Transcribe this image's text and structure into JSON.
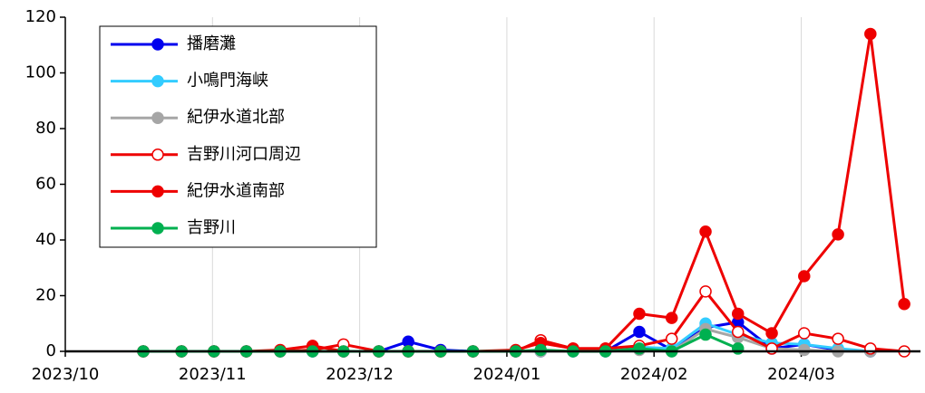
{
  "chart_data": {
    "type": "line",
    "x": [
      0.53,
      0.79,
      1.01,
      1.23,
      1.46,
      1.68,
      1.89,
      2.13,
      2.33,
      2.55,
      2.77,
      3.06,
      3.23,
      3.45,
      3.67,
      3.9,
      4.12,
      4.35,
      4.57,
      4.8,
      5.02,
      5.25,
      5.47,
      5.7
    ],
    "xlim": [
      0,
      5.81
    ],
    "xticks": [
      {
        "value": 0,
        "label": "2023/10"
      },
      {
        "value": 1,
        "label": "2023/11"
      },
      {
        "value": 2,
        "label": "2023/12"
      },
      {
        "value": 3,
        "label": "2024/01"
      },
      {
        "value": 4,
        "label": "2024/02"
      },
      {
        "value": 5,
        "label": "2024/03"
      }
    ],
    "ylim": [
      0,
      120
    ],
    "yticks": [
      0,
      20,
      40,
      60,
      80,
      100,
      120
    ],
    "grid": "x",
    "legend": "upper left",
    "series": [
      {
        "name": "播磨灘",
        "color": "#0000ee",
        "values": [
          0,
          0,
          0,
          0,
          0,
          0,
          0,
          0,
          3.5,
          0.5,
          0,
          0,
          0,
          0,
          0,
          7,
          0.5,
          8.5,
          10.5,
          1,
          2.5,
          0.5,
          0,
          null
        ]
      },
      {
        "name": "小鳴門海峡",
        "color": "#33ccff",
        "values": [
          0,
          0,
          0,
          0,
          0,
          0,
          0,
          0,
          0,
          0,
          0,
          0,
          0,
          0,
          0,
          1.5,
          1,
          10,
          6,
          3,
          2.5,
          1,
          0,
          null
        ]
      },
      {
        "name": "紀伊水道北部",
        "color": "#a6a6a6",
        "values": [
          0,
          0,
          0,
          0,
          0,
          0,
          0,
          0,
          0,
          0,
          0,
          0,
          0,
          0,
          0,
          0.5,
          0,
          8,
          5,
          1,
          0.5,
          0,
          0,
          null
        ]
      },
      {
        "name": "吉野川河口周辺",
        "color": "#ee0000",
        "marker_fill": "#ffffff",
        "values": [
          0,
          0,
          0,
          0,
          0,
          0.5,
          2.5,
          0,
          0,
          0,
          0,
          0,
          4,
          1,
          1,
          2,
          4.5,
          21.5,
          7,
          1,
          6.5,
          4.5,
          1,
          0
        ]
      },
      {
        "name": "紀伊水道南部",
        "color": "#ee0000",
        "values": [
          0,
          0,
          0,
          0,
          0.5,
          2,
          0,
          0,
          0,
          0,
          0,
          0.5,
          3,
          1,
          1,
          13.5,
          12,
          43,
          13.5,
          6.5,
          27,
          42,
          114,
          17
        ]
      },
      {
        "name": "吉野川",
        "color": "#00b050",
        "values": [
          0,
          0,
          0,
          0,
          0,
          0,
          0,
          0,
          0,
          0,
          0,
          0,
          0.5,
          0,
          0,
          1,
          0,
          6,
          1,
          null,
          null,
          null,
          null,
          null
        ]
      }
    ]
  }
}
